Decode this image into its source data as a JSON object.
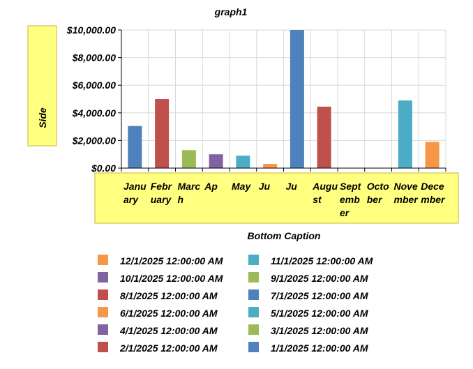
{
  "chart_data": {
    "type": "bar",
    "title": "graph1",
    "ylabel": "Side",
    "xlabel": "Bottom Caption",
    "ylim": [
      0,
      10000
    ],
    "y_ticks": [
      "$0.00",
      "$2,000.00",
      "$4,000.00",
      "$6,000.00",
      "$8,000.00",
      "$10,000.00"
    ],
    "grid": true,
    "legend_position": "bottom",
    "categories": [
      [
        "Janu",
        "ary"
      ],
      [
        "Febr",
        "uary"
      ],
      [
        "Marc",
        "h"
      ],
      [
        "Ap"
      ],
      [
        "May"
      ],
      [
        "Ju"
      ],
      [
        "Ju"
      ],
      [
        "Augu",
        "st"
      ],
      [
        "Sept",
        "emb",
        "er"
      ],
      [
        "Octo",
        "ber"
      ],
      [
        "Nove",
        "mber"
      ],
      [
        "Dece",
        "mber"
      ]
    ],
    "values": [
      3050,
      5000,
      1300,
      1000,
      900,
      300,
      10000,
      4450,
      0,
      0,
      4900,
      1900
    ],
    "colors": [
      "#4F81BD",
      "#C0504D",
      "#9BBB59",
      "#8064A2",
      "#4BACC6",
      "#F79646",
      "#4F81BD",
      "#C0504D",
      "#9BBB59",
      "#8064A2",
      "#4BACC6",
      "#F79646"
    ],
    "axis_box_fill": "#FFFF80",
    "axis_box_border": "#D4C04A",
    "legend": [
      {
        "label": "12/1/2025 12:00:00 AM",
        "color": "#F79646"
      },
      {
        "label": "11/1/2025 12:00:00 AM",
        "color": "#4BACC6"
      },
      {
        "label": "10/1/2025 12:00:00 AM",
        "color": "#8064A2"
      },
      {
        "label": "9/1/2025 12:00:00 AM",
        "color": "#9BBB59"
      },
      {
        "label": "8/1/2025 12:00:00 AM",
        "color": "#C0504D"
      },
      {
        "label": "7/1/2025 12:00:00 AM",
        "color": "#4F81BD"
      },
      {
        "label": "6/1/2025 12:00:00 AM",
        "color": "#F79646"
      },
      {
        "label": "5/1/2025 12:00:00 AM",
        "color": "#4BACC6"
      },
      {
        "label": "4/1/2025 12:00:00 AM",
        "color": "#8064A2"
      },
      {
        "label": "3/1/2025 12:00:00 AM",
        "color": "#9BBB59"
      },
      {
        "label": "2/1/2025 12:00:00 AM",
        "color": "#C0504D"
      },
      {
        "label": "1/1/2025 12:00:00 AM",
        "color": "#4F81BD"
      }
    ]
  }
}
